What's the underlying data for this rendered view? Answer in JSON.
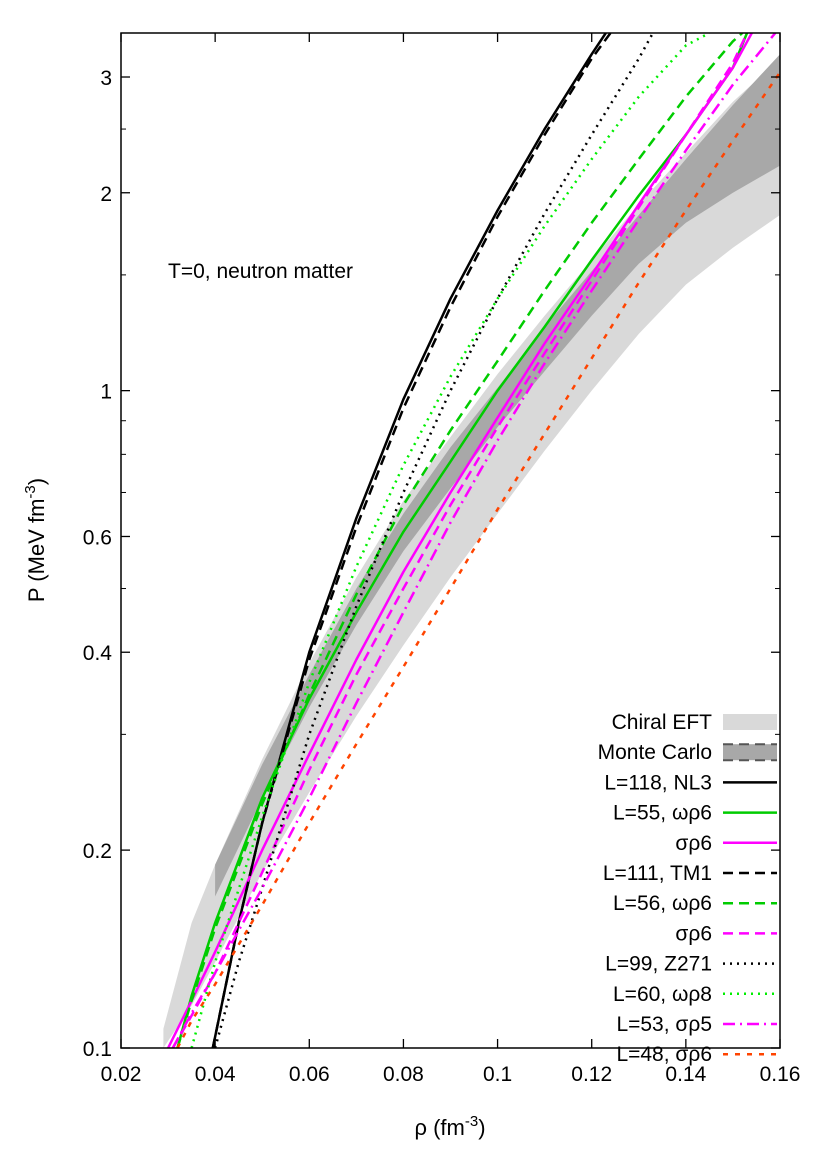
{
  "chart_data": {
    "type": "line",
    "annotation": "T=0, neutron matter",
    "xlabel": "ρ (fm",
    "xlabel_sup": "-3",
    "xlabel_tail": ")",
    "ylabel": "P (MeV fm",
    "ylabel_sup": "-3",
    "ylabel_tail": ")",
    "xlim": [
      0.02,
      0.16
    ],
    "ylim": [
      0.1,
      3.5
    ],
    "yscale": "log",
    "grid": false,
    "legend_position": "bottom-right",
    "xticks": [
      0.02,
      0.04,
      0.06,
      0.08,
      0.1,
      0.12,
      0.14,
      0.16
    ],
    "xtick_labels": [
      "0.02",
      "0.04",
      "0.06",
      "0.08",
      "0.1",
      "0.12",
      "0.14",
      "0.16"
    ],
    "yticks": [
      0.1,
      0.2,
      0.4,
      0.6,
      1,
      2,
      3
    ],
    "ytick_labels": [
      "0.1",
      "0.2",
      "0.4",
      "0.6",
      "1",
      "2",
      "3"
    ],
    "bands": [
      {
        "name": "Chiral EFT",
        "color": "#d9d9d9",
        "x": [
          0.029,
          0.035,
          0.04,
          0.05,
          0.06,
          0.07,
          0.08,
          0.09,
          0.1,
          0.11,
          0.12,
          0.13,
          0.14,
          0.15,
          0.16
        ],
        "upper": [
          0.107,
          0.155,
          0.19,
          0.275,
          0.385,
          0.52,
          0.68,
          0.85,
          1.06,
          1.3,
          1.58,
          1.92,
          2.3,
          2.75,
          3.2
        ],
        "lower": [
          0.1,
          0.116,
          0.135,
          0.185,
          0.245,
          0.32,
          0.41,
          0.52,
          0.65,
          0.81,
          1.0,
          1.22,
          1.45,
          1.65,
          1.85
        ]
      },
      {
        "name": "Monte Carlo",
        "color": "#a8a8a8",
        "x": [
          0.04,
          0.05,
          0.06,
          0.07,
          0.08,
          0.09,
          0.1,
          0.11,
          0.12,
          0.13,
          0.14,
          0.15,
          0.16
        ],
        "upper": [
          0.19,
          0.27,
          0.37,
          0.5,
          0.65,
          0.82,
          1.01,
          1.25,
          1.52,
          1.85,
          2.25,
          2.72,
          3.25
        ],
        "lower": [
          0.17,
          0.24,
          0.33,
          0.44,
          0.57,
          0.71,
          0.88,
          1.07,
          1.3,
          1.56,
          1.8,
          2.0,
          2.2
        ]
      }
    ],
    "series": [
      {
        "legend": "L=118, NL3",
        "color": "#000000",
        "dash": "solid",
        "x": [
          0.0395,
          0.045,
          0.05,
          0.06,
          0.07,
          0.08,
          0.09,
          0.1,
          0.11,
          0.12,
          0.123
        ],
        "values": [
          0.1,
          0.155,
          0.22,
          0.4,
          0.64,
          0.97,
          1.38,
          1.88,
          2.5,
          3.25,
          3.5
        ]
      },
      {
        "legend": "L=55, ωρ6",
        "color": "#00cc00",
        "dash": "solid",
        "x": [
          0.032,
          0.035,
          0.04,
          0.05,
          0.06,
          0.07,
          0.08,
          0.09,
          0.1,
          0.11,
          0.12,
          0.13,
          0.14,
          0.15,
          0.153
        ],
        "values": [
          0.1,
          0.12,
          0.155,
          0.24,
          0.34,
          0.46,
          0.61,
          0.78,
          1.0,
          1.25,
          1.58,
          1.98,
          2.45,
          3.1,
          3.5
        ]
      },
      {
        "legend": "σρ6",
        "color": "#ff00ff",
        "dash": "solid",
        "x": [
          0.03,
          0.035,
          0.04,
          0.05,
          0.06,
          0.07,
          0.08,
          0.09,
          0.1,
          0.11,
          0.12,
          0.13,
          0.14,
          0.15,
          0.154
        ],
        "values": [
          0.1,
          0.118,
          0.14,
          0.2,
          0.28,
          0.39,
          0.53,
          0.7,
          0.91,
          1.18,
          1.5,
          1.92,
          2.45,
          3.1,
          3.5
        ]
      },
      {
        "legend": "L=111, TM1",
        "color": "#000000",
        "dash": "long",
        "x": [
          0.0395,
          0.045,
          0.05,
          0.06,
          0.07,
          0.08,
          0.09,
          0.1,
          0.11,
          0.12,
          0.124
        ],
        "values": [
          0.1,
          0.155,
          0.22,
          0.39,
          0.62,
          0.94,
          1.34,
          1.84,
          2.45,
          3.2,
          3.5
        ]
      },
      {
        "legend": "L=56, ωρ6",
        "color": "#00cc00",
        "dash": "long",
        "x": [
          0.032,
          0.035,
          0.04,
          0.05,
          0.06,
          0.07,
          0.08,
          0.09,
          0.1,
          0.11,
          0.12,
          0.13,
          0.14,
          0.15,
          0.152
        ],
        "values": [
          0.1,
          0.118,
          0.152,
          0.235,
          0.345,
          0.49,
          0.67,
          0.87,
          1.11,
          1.42,
          1.8,
          2.25,
          2.8,
          3.4,
          3.5
        ]
      },
      {
        "legend": "σρ6",
        "color": "#ff00ff",
        "dash": "long",
        "x": [
          0.031,
          0.035,
          0.04,
          0.05,
          0.06,
          0.07,
          0.08,
          0.09,
          0.1,
          0.11,
          0.12,
          0.13,
          0.14,
          0.15,
          0.153
        ],
        "values": [
          0.1,
          0.112,
          0.13,
          0.185,
          0.265,
          0.37,
          0.5,
          0.67,
          0.88,
          1.14,
          1.47,
          1.9,
          2.45,
          3.15,
          3.5
        ]
      },
      {
        "legend": "L=99, Z271",
        "color": "#000000",
        "dash": "dot",
        "x": [
          0.04,
          0.045,
          0.05,
          0.06,
          0.07,
          0.08,
          0.09,
          0.1,
          0.11,
          0.12,
          0.13,
          0.133
        ],
        "values": [
          0.1,
          0.135,
          0.175,
          0.3,
          0.47,
          0.7,
          1.0,
          1.38,
          1.86,
          2.45,
          3.2,
          3.5
        ]
      },
      {
        "legend": "L=60, ωρ8",
        "color": "#00ee00",
        "dash": "dot",
        "x": [
          0.035,
          0.04,
          0.05,
          0.06,
          0.07,
          0.08,
          0.09,
          0.1,
          0.11,
          0.12,
          0.13,
          0.14,
          0.145
        ],
        "values": [
          0.1,
          0.135,
          0.225,
          0.36,
          0.54,
          0.77,
          1.05,
          1.38,
          1.78,
          2.25,
          2.8,
          3.35,
          3.5
        ]
      },
      {
        "legend": "L=53, σρ5",
        "color": "#ff00ff",
        "dash": "dashdot",
        "x": [
          0.031,
          0.035,
          0.04,
          0.05,
          0.06,
          0.07,
          0.08,
          0.09,
          0.1,
          0.11,
          0.12,
          0.13,
          0.14,
          0.15,
          0.159
        ],
        "values": [
          0.1,
          0.113,
          0.13,
          0.175,
          0.24,
          0.335,
          0.46,
          0.63,
          0.84,
          1.1,
          1.42,
          1.82,
          2.32,
          2.92,
          3.5
        ]
      },
      {
        "legend": "L=48, σρ6",
        "color": "#ff4400",
        "dash": "short",
        "x": [
          0.032,
          0.035,
          0.04,
          0.05,
          0.06,
          0.07,
          0.08,
          0.09,
          0.1,
          0.11,
          0.12,
          0.13,
          0.14,
          0.15,
          0.16
        ],
        "values": [
          0.1,
          0.11,
          0.125,
          0.165,
          0.22,
          0.29,
          0.38,
          0.5,
          0.66,
          0.86,
          1.12,
          1.46,
          1.88,
          2.4,
          3.05
        ]
      }
    ]
  }
}
